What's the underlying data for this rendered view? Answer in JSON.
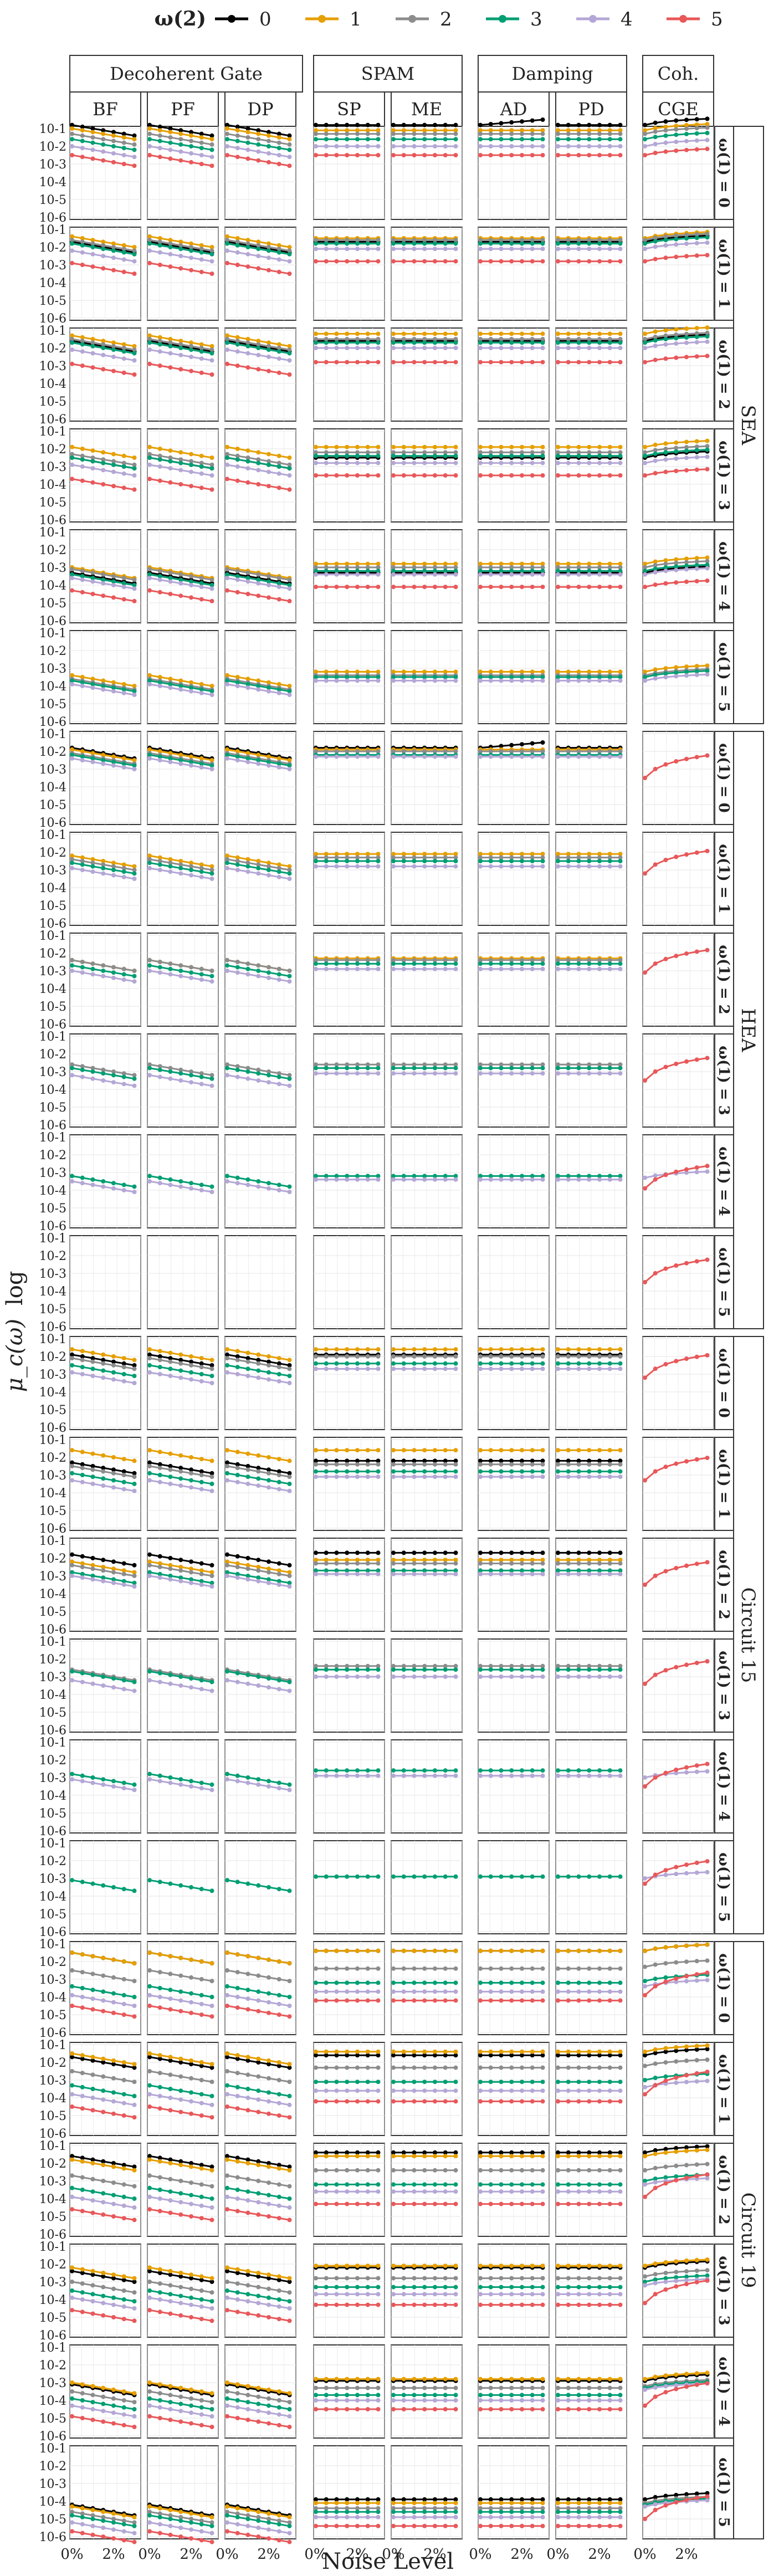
{
  "chart_data": {
    "type": "line",
    "title": "",
    "xlabel": "Noise Level",
    "ylabel": "μ_c(ω)",
    "ylabel_suffix": "log",
    "legend": {
      "title": "ω(2)",
      "placement": "top",
      "entries": [
        "0",
        "1",
        "2",
        "3",
        "4",
        "5"
      ]
    },
    "colors": [
      "#000000",
      "#E69F00",
      "#8C8C8C",
      "#009E73",
      "#B4A7D6",
      "#E8585A"
    ],
    "x": [
      0,
      0.5,
      1,
      1.5,
      2,
      2.5,
      3
    ],
    "xlim": [
      0,
      3.2
    ],
    "xticks": [
      "0%",
      "2%"
    ],
    "yscale": "log",
    "ylim": [
      1e-06,
      0.1
    ],
    "yticks": [
      "10-1",
      "10-2",
      "10-3",
      "10-4",
      "10-5",
      "10-6"
    ],
    "grid": true,
    "column_groups": [
      {
        "label": "Decoherent Gate",
        "columns": [
          "BF",
          "PF",
          "DP"
        ]
      },
      {
        "label": "SPAM",
        "columns": [
          "SP",
          "ME"
        ]
      },
      {
        "label": "Damping",
        "columns": [
          "AD",
          "PD"
        ]
      },
      {
        "label": "Coh.",
        "columns": [
          "CGE"
        ]
      }
    ],
    "row_groups": [
      {
        "label": "SEA",
        "rows": [
          "ω(1) = 0",
          "ω(1) = 1",
          "ω(1) = 2",
          "ω(1) = 3",
          "ω(1) = 4",
          "ω(1) = 5"
        ]
      },
      {
        "label": "HEA",
        "rows": [
          "ω(1) = 0",
          "ω(1) = 1",
          "ω(1) = 2",
          "ω(1) = 3",
          "ω(1) = 4",
          "ω(1) = 5"
        ]
      },
      {
        "label": "Circuit 15",
        "rows": [
          "ω(1) = 0",
          "ω(1) = 1",
          "ω(1) = 2",
          "ω(1) = 3",
          "ω(1) = 4",
          "ω(1) = 5"
        ]
      },
      {
        "label": "Circuit 19",
        "rows": [
          "ω(1) = 0",
          "ω(1) = 1",
          "ω(1) = 2",
          "ω(1) = 3",
          "ω(1) = 4",
          "ω(1) = 5"
        ]
      }
    ],
    "panel_series": {
      "SEA": [
        {
          "s": [
            0.8,
            1.0,
            1.3,
            1.6,
            2.0,
            2.5
          ],
          "flat": [
            0.8,
            1.1,
            1.3,
            1.6,
            2.0,
            2.5
          ],
          "cge": [
            0.8,
            1.1,
            1.3,
            1.6,
            2.0,
            2.5
          ],
          "ad0": 0.5
        },
        {
          "s": [
            1.7,
            1.4,
            1.6,
            1.8,
            2.2,
            2.9
          ],
          "flat": [
            1.7,
            1.5,
            1.6,
            1.8,
            2.1,
            2.8
          ],
          "cge": [
            1.7,
            1.5,
            1.6,
            1.8,
            2.1,
            2.8
          ]
        },
        {
          "s": [
            1.6,
            1.3,
            1.5,
            1.7,
            2.1,
            2.9
          ],
          "flat": [
            1.6,
            1.2,
            1.5,
            1.7,
            2.0,
            2.8
          ],
          "cge": [
            1.6,
            1.2,
            1.5,
            1.7,
            2.0,
            2.8
          ]
        },
        {
          "s": [
            2.5,
            1.9,
            2.3,
            2.5,
            2.9,
            3.7
          ],
          "flat": [
            2.5,
            1.9,
            2.2,
            2.4,
            2.8,
            3.5
          ],
          "cge": [
            2.5,
            1.9,
            2.2,
            2.4,
            2.8,
            3.5
          ]
        },
        {
          "s": [
            3.3,
            3.0,
            3.1,
            3.4,
            3.6,
            4.3
          ],
          "flat": [
            3.3,
            2.8,
            3.0,
            3.2,
            3.4,
            4.1
          ],
          "cge": [
            3.3,
            2.8,
            3.0,
            3.2,
            3.4,
            4.1
          ]
        },
        {
          "s": [
            null,
            3.4,
            3.6,
            3.7,
            3.9,
            null
          ],
          "flat": [
            null,
            3.2,
            3.4,
            3.5,
            3.7,
            null
          ],
          "cge": [
            null,
            3.2,
            3.4,
            3.5,
            3.7,
            null
          ]
        }
      ],
      "HEA": [
        {
          "s": [
            1.8,
            1.9,
            2.1,
            2.2,
            2.4,
            null
          ],
          "flat": [
            1.8,
            1.9,
            2.0,
            2.2,
            2.3,
            null
          ],
          "cge": [
            null,
            null,
            null,
            null,
            null,
            3.5
          ],
          "ad0": 1.5
        },
        {
          "s": [
            null,
            2.2,
            2.4,
            2.6,
            2.9,
            null
          ],
          "flat": [
            null,
            2.1,
            2.3,
            2.5,
            2.8,
            null
          ],
          "cge": [
            null,
            null,
            null,
            null,
            null,
            3.2
          ]
        },
        {
          "s": [
            null,
            2.4,
            2.4,
            2.7,
            3.0,
            null
          ],
          "flat": [
            null,
            2.3,
            2.4,
            2.6,
            2.9,
            null
          ],
          "cge": [
            null,
            null,
            null,
            null,
            null,
            3.1
          ]
        },
        {
          "s": [
            null,
            null,
            2.6,
            2.8,
            3.2,
            null
          ],
          "flat": [
            null,
            null,
            2.6,
            2.8,
            3.1,
            null
          ],
          "cge": [
            null,
            null,
            null,
            null,
            null,
            3.5
          ]
        },
        {
          "s": [
            null,
            null,
            null,
            3.2,
            3.5,
            null
          ],
          "flat": [
            null,
            null,
            null,
            3.2,
            3.4,
            null
          ],
          "cge": [
            null,
            null,
            null,
            null,
            3.3,
            3.9
          ]
        },
        {
          "s": [
            null,
            null,
            null,
            null,
            null,
            null
          ],
          "flat": [
            null,
            null,
            null,
            null,
            null,
            null
          ],
          "cge": [
            null,
            null,
            null,
            null,
            null,
            3.5
          ]
        }
      ],
      "Circuit 15": [
        {
          "s": [
            1.9,
            1.6,
            2.1,
            2.5,
            2.9,
            null
          ],
          "flat": [
            1.9,
            1.6,
            2.0,
            2.4,
            2.7,
            null
          ],
          "cge": [
            null,
            null,
            null,
            null,
            null,
            3.2
          ]
        },
        {
          "s": [
            2.3,
            1.6,
            2.5,
            2.9,
            3.3,
            null
          ],
          "flat": [
            2.2,
            1.6,
            2.4,
            2.8,
            3.1,
            null
          ],
          "cge": [
            null,
            null,
            null,
            null,
            null,
            3.3
          ]
        },
        {
          "s": [
            1.8,
            2.2,
            2.4,
            2.8,
            3.0,
            null
          ],
          "flat": [
            1.7,
            2.1,
            2.3,
            2.7,
            2.9,
            null
          ],
          "cge": [
            null,
            null,
            null,
            null,
            null,
            3.5
          ]
        },
        {
          "s": [
            null,
            null,
            2.6,
            2.7,
            3.2,
            null
          ],
          "flat": [
            null,
            null,
            2.4,
            2.6,
            3.0,
            null
          ],
          "cge": [
            null,
            null,
            null,
            null,
            null,
            3.4
          ]
        },
        {
          "s": [
            null,
            null,
            null,
            2.8,
            3.1,
            null
          ],
          "flat": [
            null,
            null,
            null,
            2.6,
            2.9,
            null
          ],
          "cge": [
            null,
            null,
            null,
            null,
            3.0,
            3.5
          ]
        },
        {
          "s": [
            null,
            null,
            null,
            3.1,
            null,
            null
          ],
          "flat": [
            null,
            null,
            null,
            2.9,
            null,
            null
          ],
          "cge": [
            null,
            null,
            null,
            null,
            3.0,
            3.3
          ]
        }
      ],
      "Circuit 19": [
        {
          "s": [
            1.5,
            1.5,
            2.5,
            3.4,
            3.9,
            4.5
          ],
          "flat": [
            1.4,
            1.4,
            2.4,
            3.2,
            3.7,
            4.2
          ],
          "cge": [
            1.4,
            1.4,
            2.3,
            3.1,
            3.4,
            3.9
          ]
        },
        {
          "s": [
            1.7,
            1.5,
            2.5,
            3.3,
            3.8,
            4.5
          ],
          "flat": [
            1.6,
            1.4,
            2.3,
            3.1,
            3.6,
            4.2
          ],
          "cge": [
            1.6,
            1.4,
            2.2,
            3.0,
            3.4,
            3.8
          ]
        },
        {
          "s": [
            1.6,
            1.8,
            2.7,
            3.4,
            3.9,
            4.6
          ],
          "flat": [
            1.4,
            1.6,
            2.4,
            3.2,
            3.6,
            4.3
          ],
          "cge": [
            1.4,
            1.6,
            2.4,
            3.0,
            3.2,
            3.9
          ]
        },
        {
          "s": [
            2.4,
            2.2,
            3.0,
            3.5,
            3.9,
            4.6
          ],
          "flat": [
            2.2,
            2.1,
            2.8,
            3.3,
            3.7,
            4.3
          ],
          "cge": [
            2.2,
            2.1,
            2.7,
            3.0,
            3.2,
            4.2
          ]
        },
        {
          "s": [
            3.1,
            3.0,
            3.5,
            3.9,
            4.3,
            4.9
          ],
          "flat": [
            2.9,
            2.8,
            3.3,
            3.7,
            4.0,
            4.5
          ],
          "cge": [
            2.9,
            2.8,
            3.2,
            3.3,
            3.4,
            4.3
          ]
        },
        {
          "s": [
            4.2,
            4.3,
            4.6,
            4.8,
            5.2,
            5.7
          ],
          "flat": [
            3.9,
            4.1,
            4.4,
            4.6,
            4.9,
            5.4
          ],
          "cge": [
            3.9,
            4.1,
            4.1,
            4.2,
            4.3,
            5.0
          ]
        }
      ]
    }
  }
}
